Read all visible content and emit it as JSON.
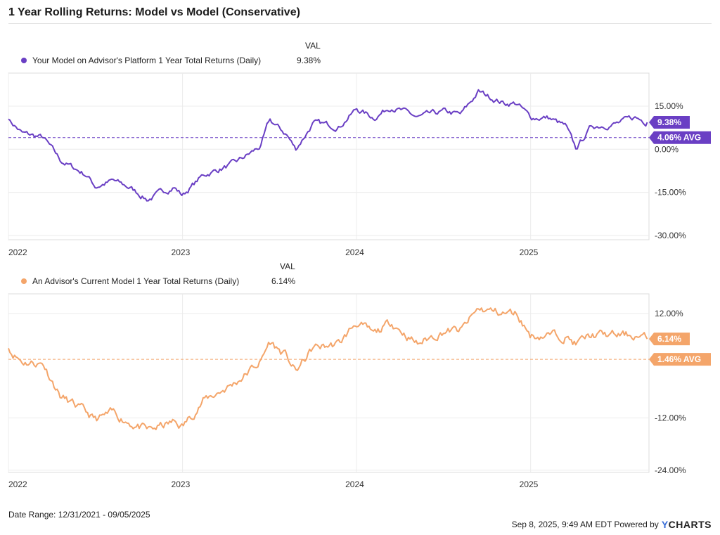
{
  "page": {
    "title": "1 Year Rolling Returns: Model vs Model (Conservative)",
    "footer_range": "Date Range: 12/31/2021 - 09/05/2025",
    "footer_timestamp": "Sep 8, 2025, 9:49 AM EDT Powered by",
    "brand_y": "Y",
    "brand_rest": "CHARTS"
  },
  "chart_data": [
    {
      "type": "line",
      "title": "1 Year Rolling Returns: Model vs Model (Conservative)",
      "legend_header": "VAL",
      "series": [
        {
          "name": "Your Model on Advisor's Platform 1 Year Total Returns (Daily)",
          "value_label": "9.38%",
          "color": "#6a3fc4",
          "last": 9.38,
          "avg": 4.06,
          "avg_label": "4.06% AVG",
          "keypoints": [
            [
              2022.0,
              10.5
            ],
            [
              2022.08,
              5.5
            ],
            [
              2022.2,
              4.0
            ],
            [
              2022.3,
              -4.0
            ],
            [
              2022.45,
              -9.0
            ],
            [
              2022.5,
              -13.0
            ],
            [
              2022.6,
              -11.0
            ],
            [
              2022.7,
              -13.5
            ],
            [
              2022.8,
              -17.5
            ],
            [
              2022.95,
              -13.0
            ],
            [
              2023.0,
              -16.0
            ],
            [
              2023.12,
              -9.0
            ],
            [
              2023.3,
              -5.0
            ],
            [
              2023.45,
              1.0
            ],
            [
              2023.5,
              10.0
            ],
            [
              2023.6,
              5.0
            ],
            [
              2023.65,
              0.0
            ],
            [
              2023.75,
              9.0
            ],
            [
              2023.9,
              8.0
            ],
            [
              2024.0,
              14.0
            ],
            [
              2024.1,
              11.0
            ],
            [
              2024.2,
              15.0
            ],
            [
              2024.35,
              11.0
            ],
            [
              2024.5,
              13.0
            ],
            [
              2024.6,
              12.0
            ],
            [
              2024.7,
              20.0
            ],
            [
              2024.85,
              16.0
            ],
            [
              2024.92,
              16.0
            ],
            [
              2025.0,
              11.0
            ],
            [
              2025.1,
              11.0
            ],
            [
              2025.2,
              8.0
            ],
            [
              2025.26,
              0.0
            ],
            [
              2025.35,
              8.0
            ],
            [
              2025.5,
              9.0
            ],
            [
              2025.6,
              11.0
            ],
            [
              2025.67,
              9.38
            ]
          ],
          "y_ticks": [
            15,
            0,
            -15,
            -30
          ],
          "y_tick_labels": [
            "15.00%",
            "0.00%",
            "-15.00%",
            "-30.00%"
          ],
          "ylim": [
            -31.5,
            26.5
          ]
        },
        {
          "name": "An Advisor's Current Model 1 Year Total Returns (Daily)",
          "value_label": "6.14%",
          "color": "#f4a56a",
          "last": 6.14,
          "avg": 1.46,
          "avg_label": "1.46% AVG",
          "keypoints": [
            [
              2022.0,
              4.0
            ],
            [
              2022.08,
              1.0
            ],
            [
              2022.2,
              0.5
            ],
            [
              2022.3,
              -7.0
            ],
            [
              2022.45,
              -11.0
            ],
            [
              2022.5,
              -12.5
            ],
            [
              2022.6,
              -11.0
            ],
            [
              2022.7,
              -13.0
            ],
            [
              2022.8,
              -15.0
            ],
            [
              2022.95,
              -13.0
            ],
            [
              2023.0,
              -14.0
            ],
            [
              2023.12,
              -8.0
            ],
            [
              2023.3,
              -4.0
            ],
            [
              2023.45,
              1.0
            ],
            [
              2023.5,
              5.5
            ],
            [
              2023.6,
              2.0
            ],
            [
              2023.65,
              -1.5
            ],
            [
              2023.75,
              4.0
            ],
            [
              2023.9,
              5.0
            ],
            [
              2024.0,
              10.0
            ],
            [
              2024.1,
              7.0
            ],
            [
              2024.2,
              10.0
            ],
            [
              2024.35,
              5.0
            ],
            [
              2024.5,
              8.0
            ],
            [
              2024.6,
              8.0
            ],
            [
              2024.7,
              13.0
            ],
            [
              2024.85,
              12.0
            ],
            [
              2024.92,
              12.0
            ],
            [
              2025.0,
              7.0
            ],
            [
              2025.1,
              7.0
            ],
            [
              2025.2,
              7.0
            ],
            [
              2025.26,
              5.0
            ],
            [
              2025.35,
              7.0
            ],
            [
              2025.5,
              7.0
            ],
            [
              2025.6,
              7.0
            ],
            [
              2025.67,
              6.14
            ]
          ],
          "y_ticks": [
            12,
            -12,
            -24
          ],
          "y_tick_labels": [
            "12.00%",
            "-12.00%",
            "-24.00%"
          ],
          "ylim": [
            -24.5,
            16.5
          ]
        }
      ],
      "x_ticks": [
        2022,
        2023,
        2024,
        2025
      ],
      "x_tick_labels": [
        "2022",
        "2023",
        "2024",
        "2025"
      ],
      "xlim": [
        2022.0,
        2025.68
      ]
    }
  ]
}
